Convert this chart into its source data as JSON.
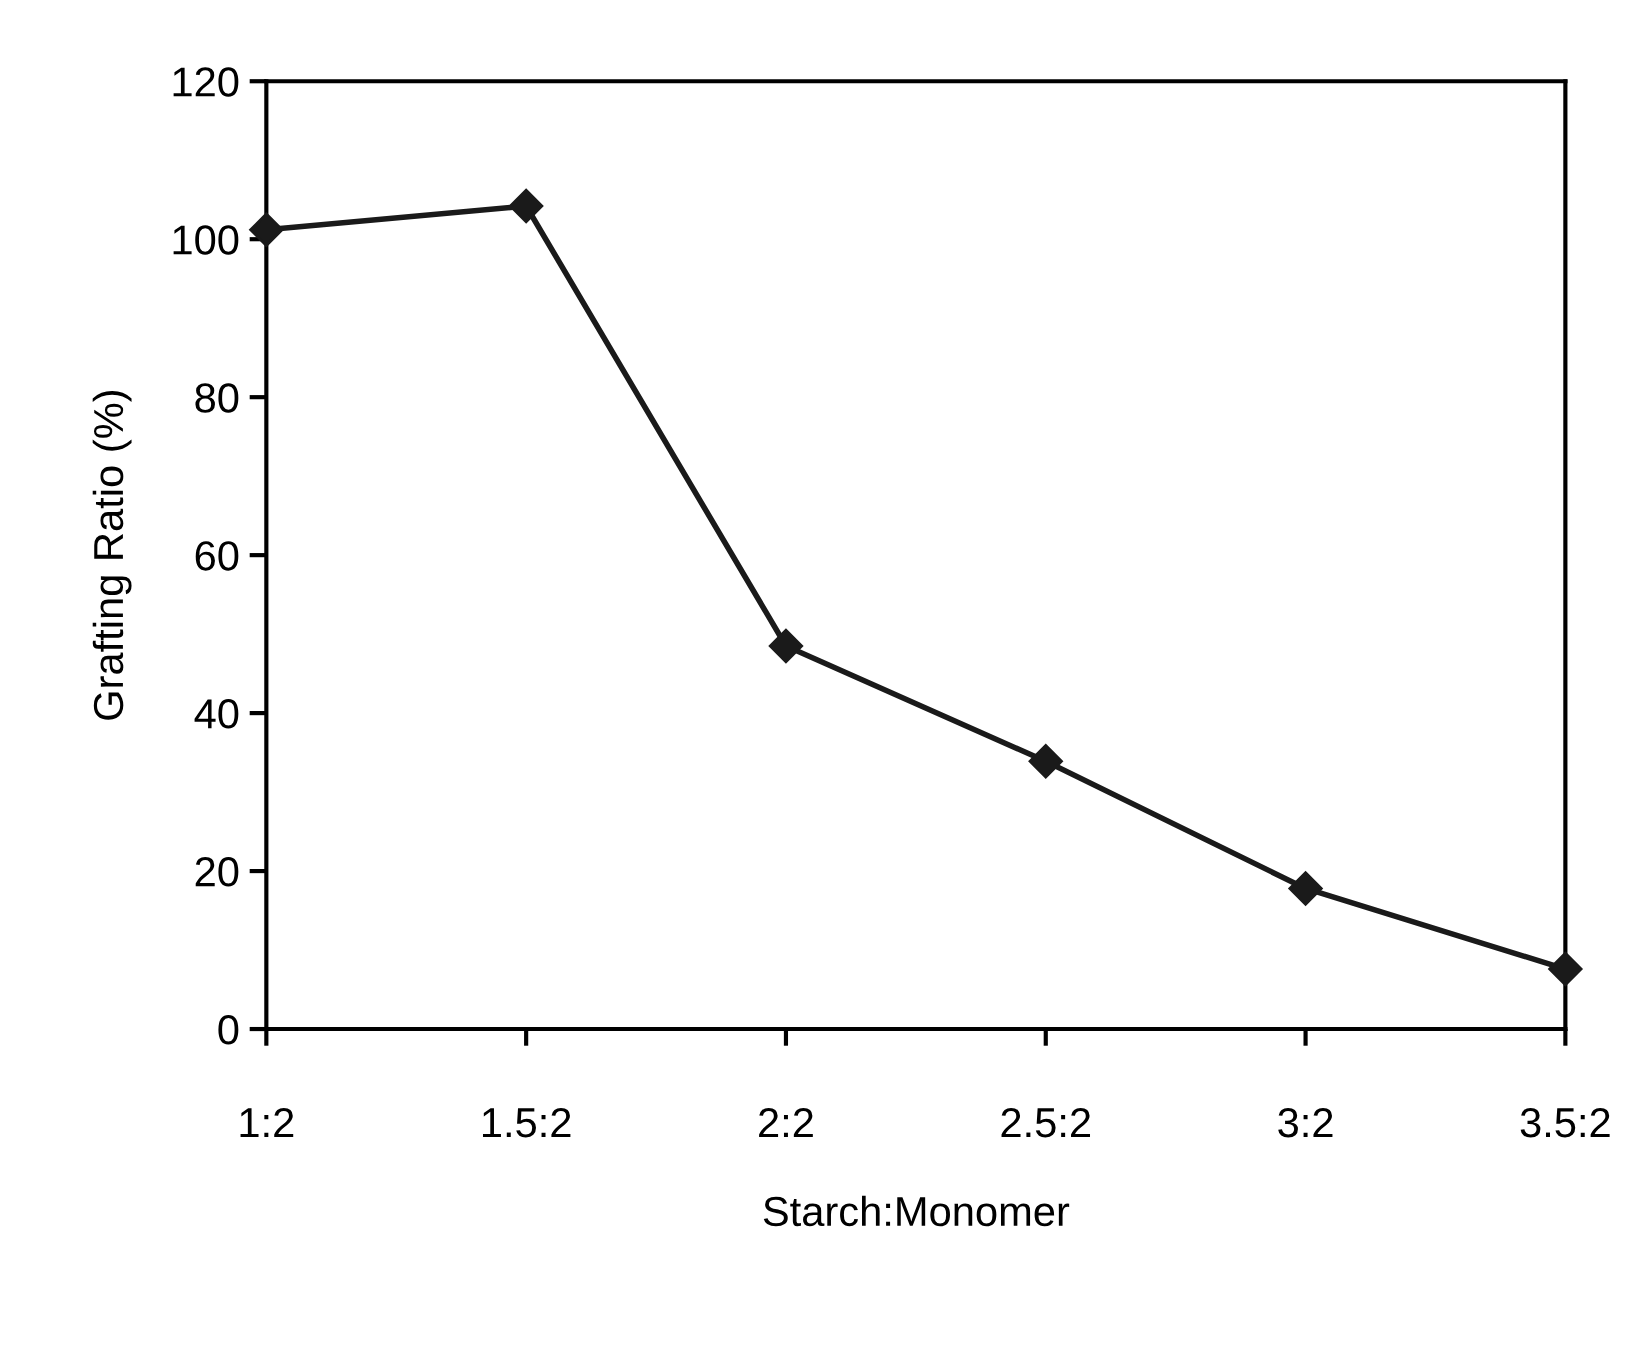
{
  "chart_data": {
    "type": "line",
    "xlabel": "Starch:Monomer",
    "ylabel": "Grafting Ratio (%)",
    "categories": [
      "1:2",
      "1.5:2",
      "2:2",
      "2.5:2",
      "3:2",
      "3.5:2"
    ],
    "series": [
      {
        "color": "#1a1a1a",
        "values": [
          101.2,
          104.2,
          48.5,
          33.9,
          17.8,
          7.6
        ]
      }
    ],
    "ylim": [
      0,
      120
    ],
    "yticks": [
      0,
      20,
      40,
      60,
      80,
      100,
      120
    ],
    "marker": "diamond",
    "line_style": "solid"
  }
}
